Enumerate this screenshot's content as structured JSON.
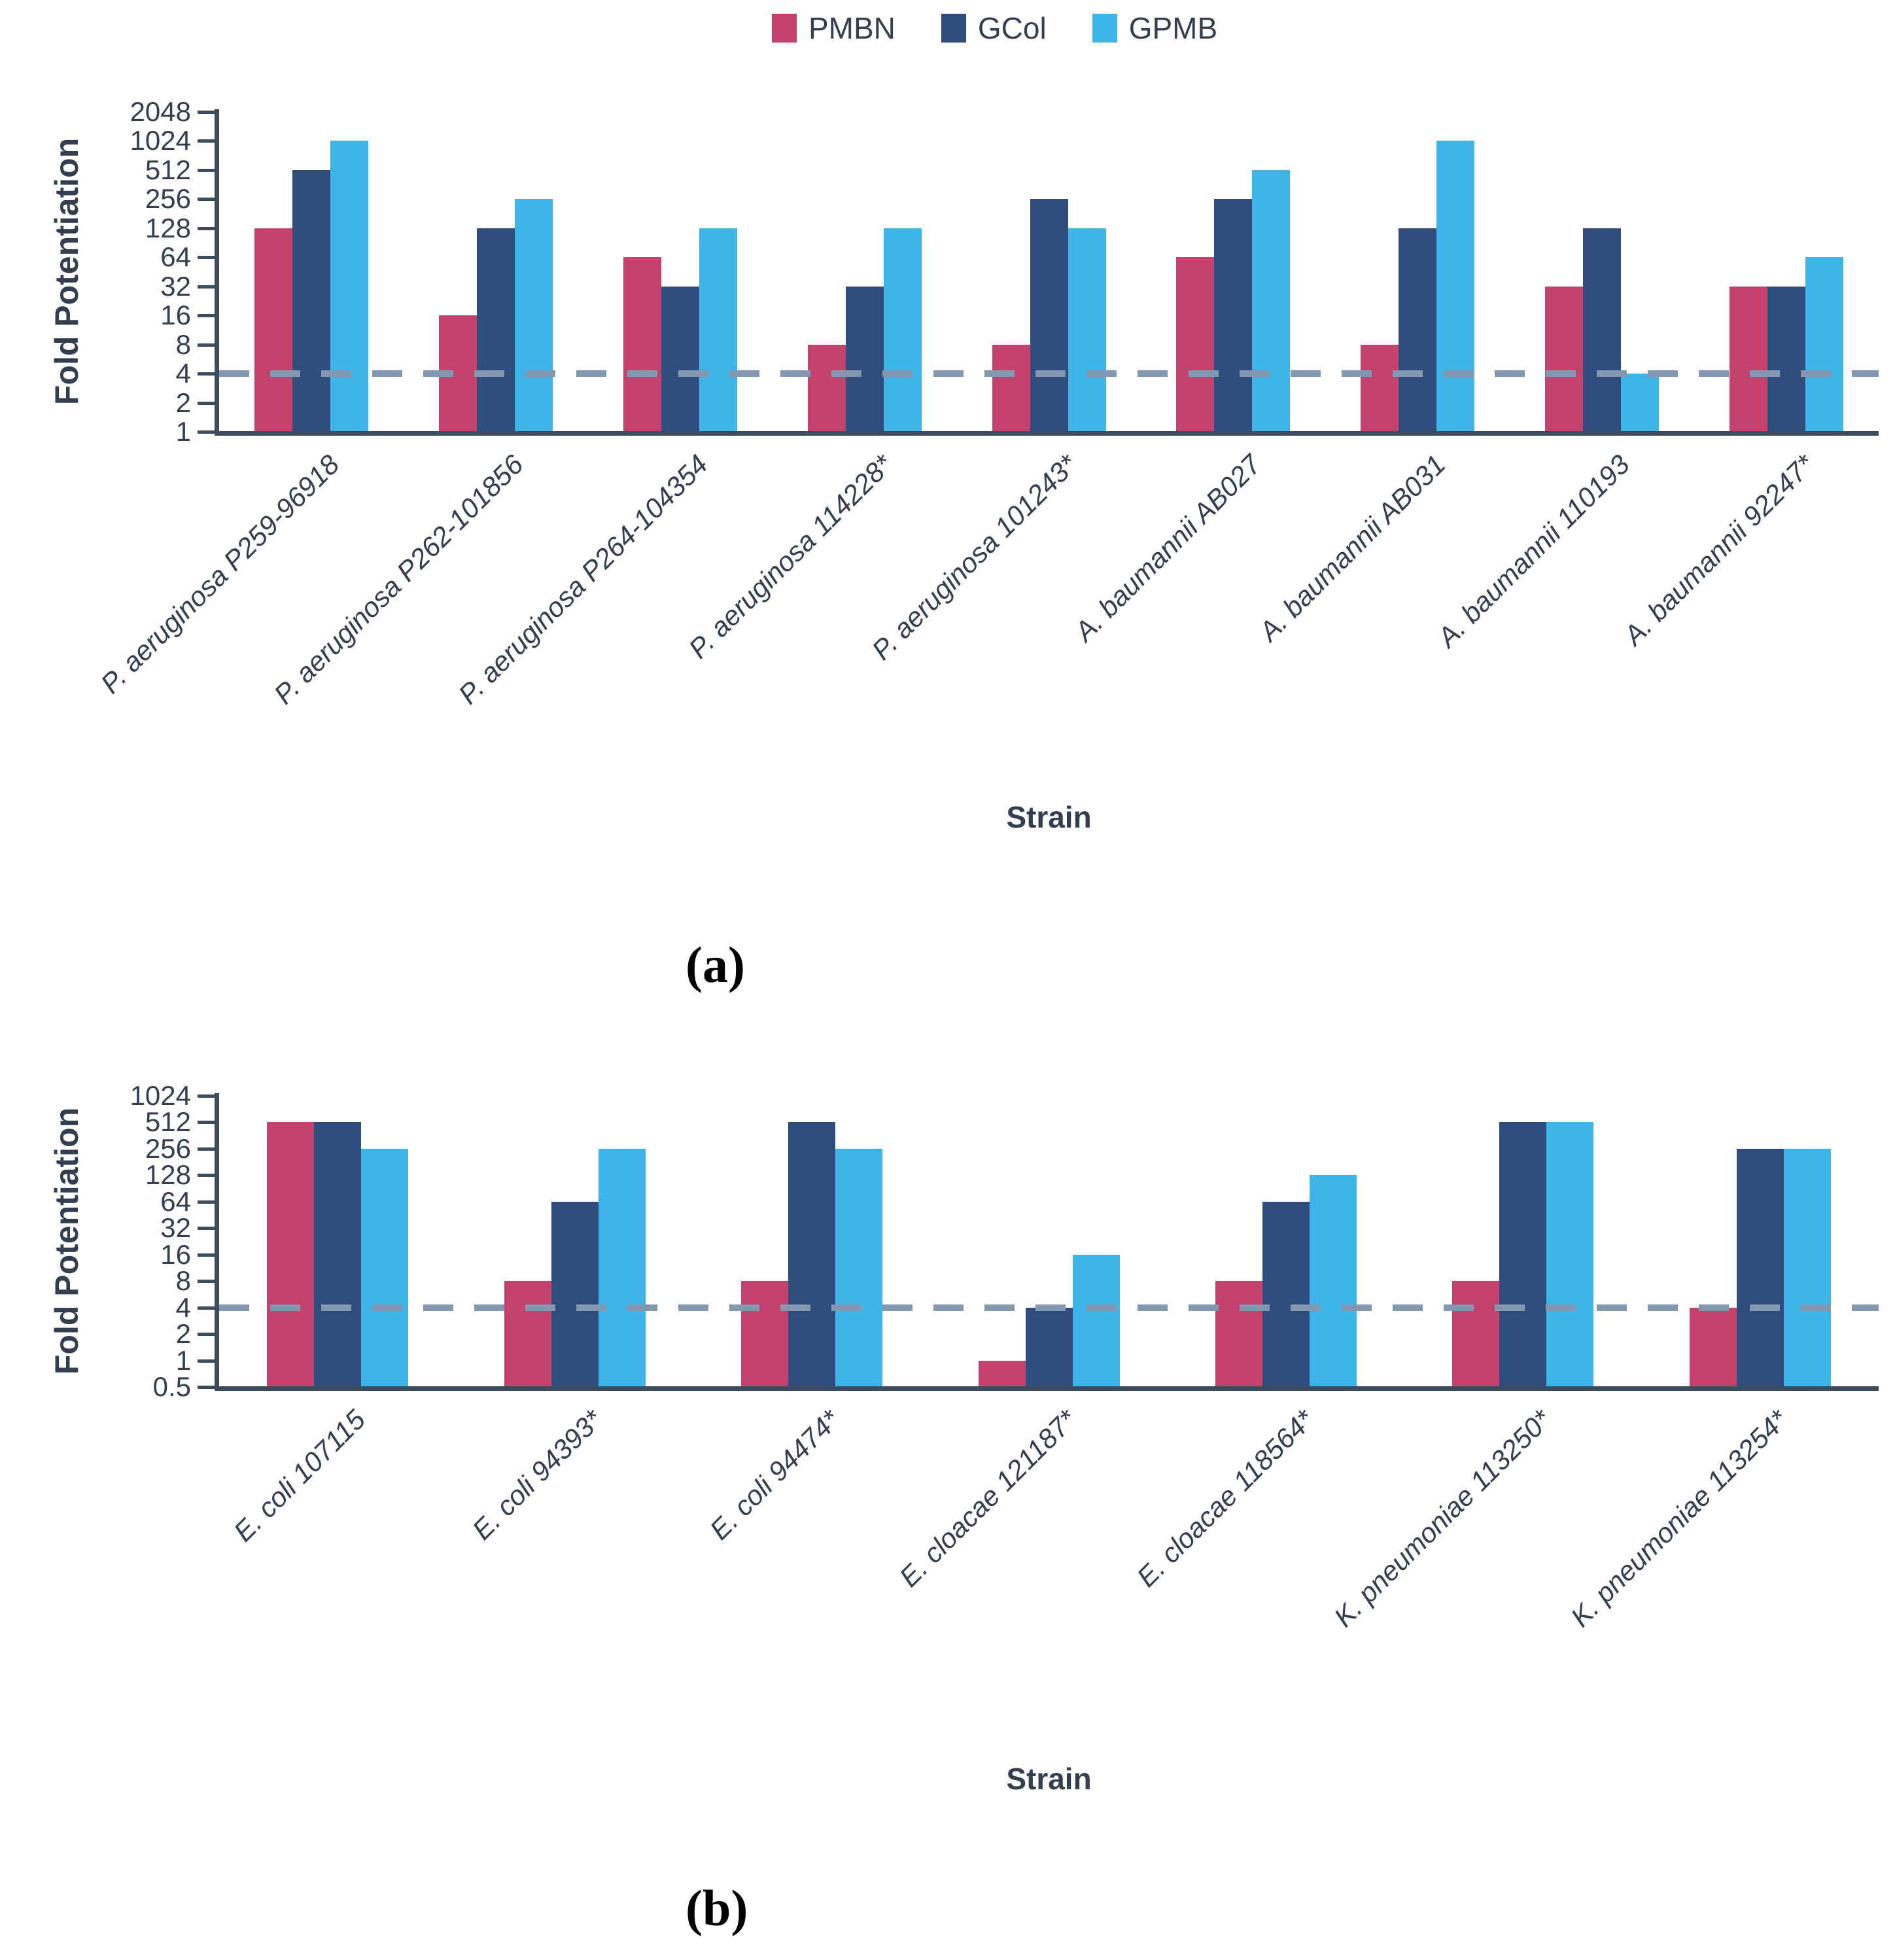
{
  "legend": {
    "items": [
      {
        "label": "PMBN",
        "color": "#C2426C"
      },
      {
        "label": "GCol",
        "color": "#2E4C7C"
      },
      {
        "label": "GPMB",
        "color": "#3FB4E9"
      }
    ],
    "position": "top-center"
  },
  "captions": {
    "a": "(a)",
    "b": "(b)"
  },
  "styles": {
    "axis_color": "#3E4C62",
    "text_color": "#333F50",
    "dashed_line_color": "#8497B0",
    "background": "#FFFFFF"
  },
  "chart_data": [
    {
      "type": "bar",
      "panel": "a",
      "title": "",
      "xlabel": "Strain",
      "ylabel": "Fold Potentiation",
      "yscale": "log2",
      "grid": false,
      "legend_position": "top-center",
      "yticks": [
        2048,
        1024,
        512,
        256,
        128,
        64,
        32,
        16,
        8,
        4,
        2,
        1
      ],
      "ylim": [
        1,
        2048
      ],
      "ybase": 1,
      "reference_line": 4,
      "categories": [
        "P. aeruginosa P259-96918",
        "P. aeruginosa P262-101856",
        "P. aeruginosa P264-104354",
        "P. aeruginosa 114228*",
        "P. aeruginosa 101243*",
        "A. baumannii AB027",
        "A. baumannii AB031",
        "A. baumannii 110193",
        "A. baumannii 92247*"
      ],
      "series": [
        {
          "name": "PMBN",
          "color": "#C2426C",
          "values": [
            128,
            16,
            64,
            8,
            8,
            64,
            8,
            32,
            32
          ]
        },
        {
          "name": "GCol",
          "color": "#2E4C7C",
          "values": [
            512,
            128,
            32,
            32,
            256,
            256,
            128,
            128,
            32
          ]
        },
        {
          "name": "GPMB",
          "color": "#3FB4E9",
          "values": [
            1024,
            256,
            128,
            128,
            128,
            512,
            1024,
            4,
            64
          ]
        }
      ]
    },
    {
      "type": "bar",
      "panel": "b",
      "title": "",
      "xlabel": "Strain",
      "ylabel": "Fold Potentiation",
      "yscale": "log2",
      "grid": false,
      "legend_position": "top-center",
      "yticks": [
        1024,
        512,
        256,
        128,
        64,
        32,
        16,
        8,
        4,
        2,
        1,
        0.5
      ],
      "ylim": [
        0.5,
        1024
      ],
      "ybase": 0.5,
      "reference_line": 4,
      "categories": [
        "E. coli 107115",
        "E. coli 94393*",
        "E. coli 94474*",
        "E. cloacae 121187*",
        "E. cloacae 118564*",
        "K. pneumoniae 113250*",
        "K. pneumoniae 113254*"
      ],
      "series": [
        {
          "name": "PMBN",
          "color": "#C2426C",
          "values": [
            512,
            8,
            8,
            1,
            8,
            8,
            4
          ]
        },
        {
          "name": "GCol",
          "color": "#2E4C7C",
          "values": [
            512,
            64,
            512,
            4,
            64,
            512,
            256
          ]
        },
        {
          "name": "GPMB",
          "color": "#3FB4E9",
          "values": [
            256,
            256,
            256,
            16,
            128,
            512,
            256
          ]
        }
      ]
    }
  ]
}
